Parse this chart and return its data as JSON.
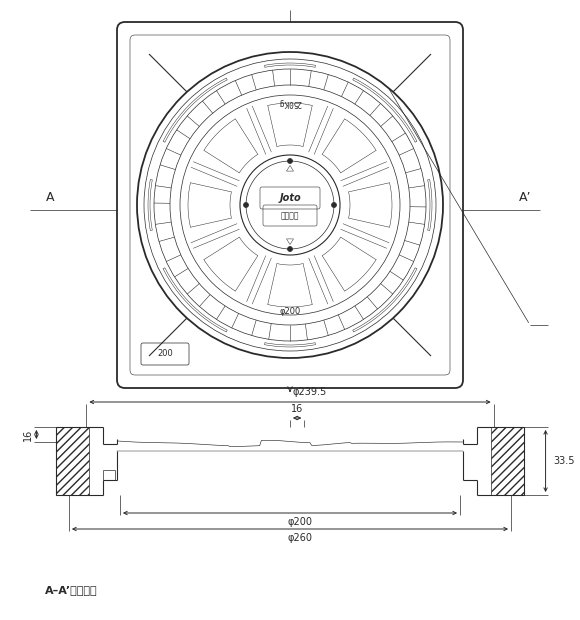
{
  "bg_color": "#ffffff",
  "line_color": "#2a2a2a",
  "label_joto": "Joto",
  "label_kinshi": "重車禁止",
  "label_250kg": "250Kg",
  "label_phi200_top": "φ200",
  "label_200_box": "200",
  "label_A": "A",
  "label_Aprime": "A’",
  "dim_phi239": "φ239.5",
  "dim_16_top": "16",
  "dim_16_left": "16",
  "dim_335": "33.5",
  "dim_phi200": "φ200",
  "dim_phi260": "φ260",
  "label_section": "A–A’　断面図"
}
